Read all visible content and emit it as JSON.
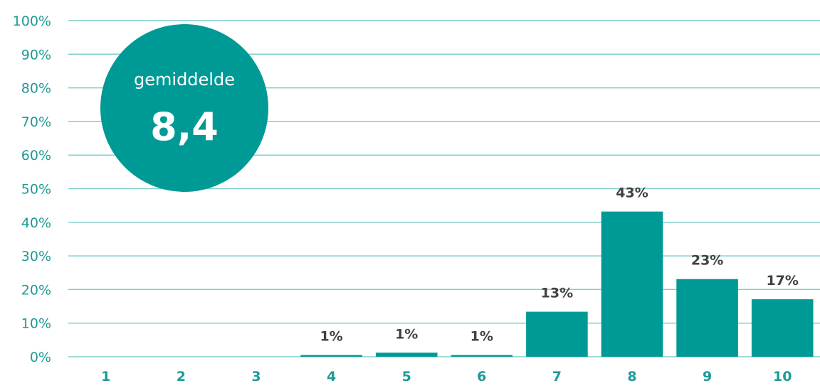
{
  "chart_data": {
    "type": "bar",
    "categories": [
      "1",
      "2",
      "3",
      "4",
      "5",
      "6",
      "7",
      "8",
      "9",
      "10"
    ],
    "values": [
      0,
      0,
      0,
      0.5,
      1.2,
      0.5,
      13.4,
      43.2,
      23.1,
      17.1
    ],
    "data_labels": [
      "",
      "",
      "",
      "1%",
      "1%",
      "1%",
      "13%",
      "43%",
      "23%",
      "17%"
    ],
    "ylim": [
      0,
      100
    ],
    "yticks": [
      "0%",
      "10%",
      "20%",
      "30%",
      "40%",
      "50%",
      "60%",
      "70%",
      "80%",
      "90%",
      "100%"
    ],
    "grid": true,
    "colors": {
      "bar": "#009a96",
      "grid": "#7fcfcc",
      "tick_text": "#1e9a96",
      "data_label": "#404040"
    }
  },
  "badge": {
    "label": "gemiddelde",
    "value": "8,4"
  }
}
